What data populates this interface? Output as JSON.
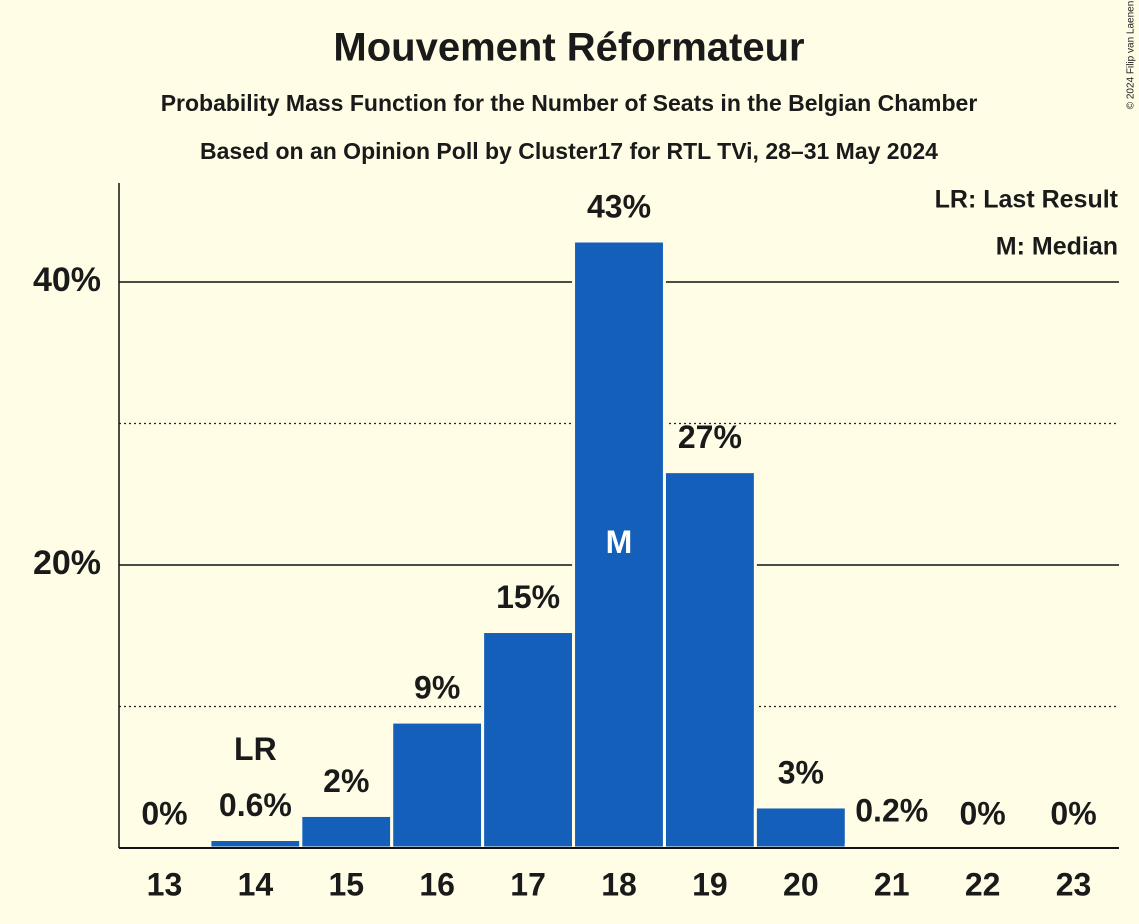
{
  "chart_data": {
    "type": "bar",
    "title": "Mouvement Réformateur",
    "subtitle": "Probability Mass Function for the Number of Seats in the Belgian Chamber",
    "subtitle2": "Based on an Opinion Poll by Cluster17 for RTL TVi, 28–31 May 2024",
    "credit": "© 2024 Filip van Laenen",
    "categories": [
      "13",
      "14",
      "15",
      "16",
      "17",
      "18",
      "19",
      "20",
      "21",
      "22",
      "23"
    ],
    "values": [
      0,
      0.6,
      2.3,
      8.9,
      15.3,
      42.9,
      26.6,
      2.9,
      0.2,
      0,
      0
    ],
    "value_labels": [
      "0%",
      "0.6%",
      "2%",
      "9%",
      "15%",
      "43%",
      "27%",
      "3%",
      "0.2%",
      "0%",
      "0%"
    ],
    "color": "#135fba",
    "ylim": [
      0,
      47
    ],
    "yticks": [
      {
        "value": 20,
        "label": "20%"
      },
      {
        "value": 40,
        "label": "40%"
      }
    ],
    "minor_yticks": [
      10,
      30
    ],
    "grid": true,
    "last_result": {
      "label": "LR",
      "category": "14"
    },
    "median": {
      "label": "M",
      "category": "18"
    },
    "legend": [
      "LR: Last Result",
      "M: Median"
    ]
  }
}
